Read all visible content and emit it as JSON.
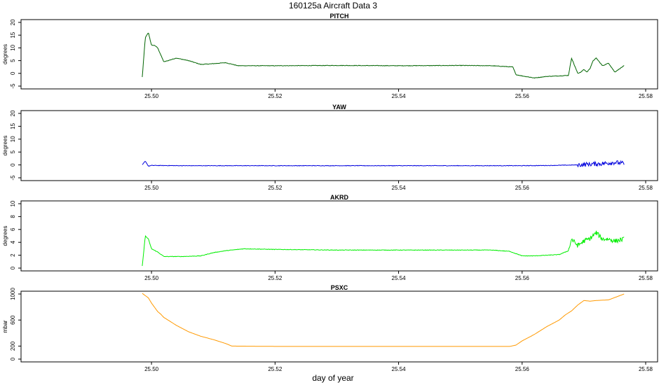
{
  "title": "160125a   Aircraft Data 3",
  "xlabel": "day of year",
  "chart_data": [
    {
      "type": "line",
      "title": "PITCH",
      "ylabel": "degrees",
      "color": "#006400",
      "xlim": [
        25.49,
        25.58
      ],
      "ylim": [
        -5,
        20
      ],
      "yticks": [
        "-5",
        "0",
        "5",
        "10",
        "15",
        "20"
      ],
      "xticks": [
        "25.50",
        "25.52",
        "25.54",
        "25.56",
        "25.58"
      ],
      "x": [
        25.4985,
        25.499,
        25.4995,
        25.5,
        25.5005,
        25.501,
        25.502,
        25.504,
        25.506,
        25.508,
        25.51,
        25.512,
        25.514,
        25.52,
        25.53,
        25.54,
        25.55,
        25.555,
        25.5585,
        25.559,
        25.56,
        25.562,
        25.564,
        25.566,
        25.5675,
        25.568,
        25.569,
        25.5695,
        25.57,
        25.5705,
        25.571,
        25.5715,
        25.572,
        25.573,
        25.574,
        25.575,
        25.5765
      ],
      "y": [
        -1.5,
        14,
        16,
        11,
        11,
        10,
        4.5,
        6,
        5,
        3.5,
        3.8,
        4.2,
        3,
        3,
        3.1,
        3,
        3.1,
        3,
        2.5,
        -0.5,
        -1,
        -1.8,
        -1.2,
        -1,
        -0.8,
        6,
        0,
        0.5,
        1.5,
        0.5,
        2,
        5,
        6,
        3,
        4,
        0.5,
        3
      ]
    },
    {
      "type": "line",
      "title": "YAW",
      "ylabel": "degrees",
      "color": "#0000dd",
      "xlim": [
        25.49,
        25.58
      ],
      "ylim": [
        -5,
        20
      ],
      "yticks": [
        "-5",
        "0",
        "5",
        "10",
        "15",
        "20"
      ],
      "xticks": [
        "25.50",
        "25.52",
        "25.54",
        "25.56",
        "25.58"
      ],
      "x": [
        25.4985,
        25.499,
        25.4995,
        25.5,
        25.505,
        25.51,
        25.52,
        25.53,
        25.54,
        25.55,
        25.555,
        25.56,
        25.565,
        25.567,
        25.569,
        25.571,
        25.573,
        25.575,
        25.5765
      ],
      "y": [
        0,
        1.5,
        -0.5,
        -0.2,
        -0.3,
        -0.3,
        -0.3,
        -0.3,
        -0.3,
        -0.3,
        -0.3,
        -0.3,
        -0.2,
        -0.1,
        0,
        0.3,
        0.5,
        1,
        0.5
      ],
      "noise_from": 25.569
    },
    {
      "type": "line",
      "title": "AKRD",
      "ylabel": "degrees",
      "color": "#00ee00",
      "xlim": [
        25.49,
        25.58
      ],
      "ylim": [
        0,
        10
      ],
      "yticks": [
        "0",
        "2",
        "4",
        "6",
        "8",
        "10"
      ],
      "xticks": [
        "25.50",
        "25.52",
        "25.54",
        "25.56",
        "25.58"
      ],
      "x": [
        25.4985,
        25.499,
        25.4995,
        25.5,
        25.501,
        25.502,
        25.505,
        25.508,
        25.51,
        25.512,
        25.515,
        25.52,
        25.53,
        25.54,
        25.55,
        25.555,
        25.558,
        25.56,
        25.562,
        25.566,
        25.5675,
        25.568,
        25.569,
        25.57,
        25.571,
        25.572,
        25.573,
        25.574,
        25.575,
        25.5765
      ],
      "y": [
        0.3,
        5,
        4.5,
        3,
        2.5,
        1.8,
        1.8,
        1.9,
        2.4,
        2.7,
        3,
        2.9,
        2.8,
        2.8,
        2.8,
        2.8,
        2.6,
        1.9,
        1.9,
        2.1,
        2.7,
        4.5,
        3.5,
        4.2,
        4.6,
        5.5,
        4.5,
        4.5,
        4.2,
        4.5
      ],
      "noise_from": 25.5675
    },
    {
      "type": "line",
      "title": "PSXC",
      "ylabel": "mbar",
      "color": "#ff9900",
      "xlim": [
        25.49,
        25.58
      ],
      "ylim": [
        0,
        1000
      ],
      "yticks": [
        "0",
        "200",
        "600",
        "1000"
      ],
      "ytick_values": [
        0,
        200,
        600,
        1000
      ],
      "xticks": [
        "25.50",
        "25.52",
        "25.54",
        "25.56",
        "25.58"
      ],
      "x": [
        25.4985,
        25.4995,
        25.5,
        25.501,
        25.5015,
        25.502,
        25.504,
        25.506,
        25.508,
        25.51,
        25.512,
        25.513,
        25.52,
        25.53,
        25.54,
        25.55,
        25.558,
        25.559,
        25.56,
        25.562,
        25.564,
        25.566,
        25.567,
        25.568,
        25.569,
        25.57,
        25.571,
        25.572,
        25.574,
        25.5765
      ],
      "y": [
        1010,
        940,
        860,
        730,
        690,
        640,
        520,
        420,
        350,
        300,
        240,
        200,
        195,
        195,
        195,
        195,
        195,
        215,
        280,
        380,
        500,
        600,
        680,
        740,
        830,
        900,
        890,
        900,
        910,
        1000
      ]
    }
  ]
}
